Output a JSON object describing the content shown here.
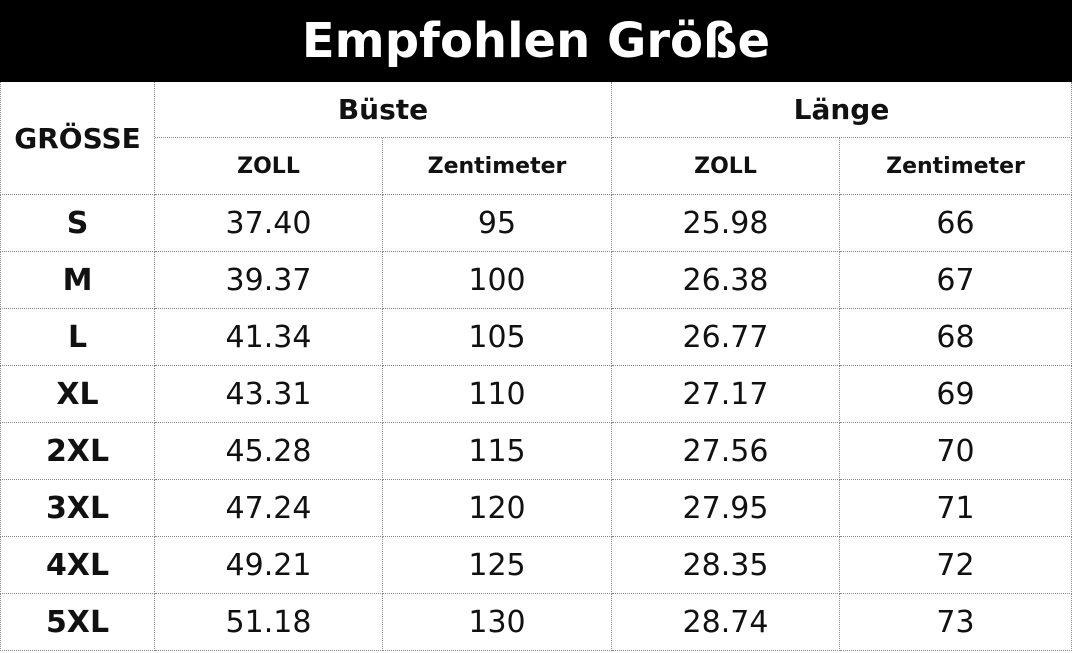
{
  "header": {
    "title": "Empfohlen Größe"
  },
  "table": {
    "size_label": "GRÖSSE",
    "groups": [
      "Büste",
      "Länge"
    ],
    "units": [
      "ZOLL",
      "Zentimeter",
      "ZOLL",
      "Zentimeter"
    ],
    "rows": [
      [
        "S",
        "37.40",
        "95",
        "25.98",
        "66"
      ],
      [
        "M",
        "39.37",
        "100",
        "26.38",
        "67"
      ],
      [
        "L",
        "41.34",
        "105",
        "26.77",
        "68"
      ],
      [
        "XL",
        "43.31",
        "110",
        "27.17",
        "69"
      ],
      [
        "2XL",
        "45.28",
        "115",
        "27.56",
        "70"
      ],
      [
        "3XL",
        "47.24",
        "120",
        "27.95",
        "71"
      ],
      [
        "4XL",
        "49.21",
        "125",
        "28.35",
        "72"
      ],
      [
        "5XL",
        "51.18",
        "130",
        "28.74",
        "73"
      ]
    ]
  }
}
